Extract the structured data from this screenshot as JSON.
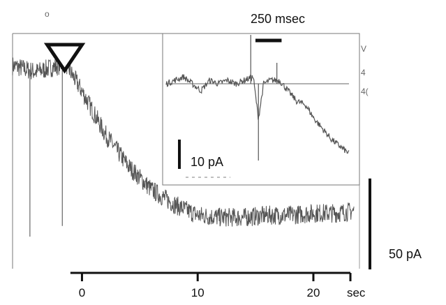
{
  "panel_label": "o",
  "chart_data": [
    {
      "type": "line",
      "title": "",
      "xlabel": "",
      "ylabel": "",
      "x_unit": "sec",
      "x_ticks": [
        0,
        10,
        20
      ],
      "xlim": [
        -6,
        23.5
      ],
      "ylim": [
        -95,
        15
      ],
      "scale_bar": {
        "label": "50 pA",
        "value": 50
      },
      "stimulus_marker": {
        "shape": "open-triangle",
        "x": -1.5
      },
      "grid": false,
      "legend": "none",
      "series": [
        {
          "x": [
            -6,
            -4,
            -2,
            -1.5,
            -1,
            0,
            1,
            2,
            4,
            6,
            8,
            10,
            12,
            14,
            16,
            18,
            20,
            22,
            23.5
          ],
          "values": [
            0,
            -3,
            0,
            2,
            -3,
            -12,
            -22,
            -32,
            -47,
            -58,
            -65,
            -70,
            -71,
            -71,
            -70,
            -70,
            -69,
            -69,
            -68
          ]
        }
      ],
      "artifacts": [
        {
          "x": -4.5,
          "y": -80
        },
        {
          "x": -1.7,
          "y": -75
        }
      ]
    },
    {
      "type": "line",
      "title": "",
      "inset": true,
      "x_scale_bar": {
        "label": "250 msec",
        "value": 250
      },
      "y_scale_bar": {
        "label": "10 pA",
        "value": 10
      },
      "right_labels": [
        "V",
        "4",
        "4("
      ],
      "series": [
        {
          "x": [
            0,
            50,
            100,
            150,
            200,
            250,
            300,
            350,
            400,
            450,
            500,
            530,
            560,
            600,
            650,
            700,
            750,
            800,
            850,
            900,
            950,
            1000,
            1050
          ],
          "values": [
            0,
            1,
            2,
            0,
            -2,
            1,
            0,
            1,
            0,
            1,
            2,
            -10,
            0,
            1,
            1,
            -2,
            -5,
            -6,
            -10,
            -13,
            -16,
            -18,
            -20
          ]
        }
      ],
      "baseline_y": 0
    }
  ]
}
